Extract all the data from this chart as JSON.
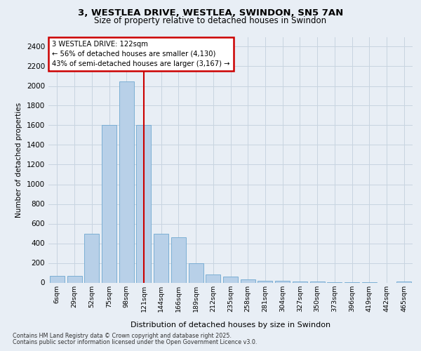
{
  "title1": "3, WESTLEA DRIVE, WESTLEA, SWINDON, SN5 7AN",
  "title2": "Size of property relative to detached houses in Swindon",
  "xlabel": "Distribution of detached houses by size in Swindon",
  "ylabel": "Number of detached properties",
  "categories": [
    "6sqm",
    "29sqm",
    "52sqm",
    "75sqm",
    "98sqm",
    "121sqm",
    "144sqm",
    "166sqm",
    "189sqm",
    "212sqm",
    "235sqm",
    "258sqm",
    "281sqm",
    "304sqm",
    "327sqm",
    "350sqm",
    "373sqm",
    "396sqm",
    "419sqm",
    "442sqm",
    "465sqm"
  ],
  "values": [
    70,
    70,
    500,
    1600,
    2050,
    1600,
    500,
    460,
    200,
    80,
    60,
    30,
    20,
    15,
    10,
    8,
    5,
    3,
    2,
    0,
    10
  ],
  "bar_color": "#b8d0e8",
  "bar_edge_color": "#6fa8d0",
  "reference_line_x": 5,
  "annotation_line1": "3 WESTLEA DRIVE: 122sqm",
  "annotation_line2": "← 56% of detached houses are smaller (4,130)",
  "annotation_line3": "43% of semi-detached houses are larger (3,167) →",
  "ylim": [
    0,
    2500
  ],
  "yticks": [
    0,
    200,
    400,
    600,
    800,
    1000,
    1200,
    1400,
    1600,
    1800,
    2000,
    2200,
    2400
  ],
  "background_color": "#e8eef5",
  "plot_bg_color": "#e8eef5",
  "footer1": "Contains HM Land Registry data © Crown copyright and database right 2025.",
  "footer2": "Contains public sector information licensed under the Open Government Licence v3.0.",
  "annotation_box_color": "#ffffff",
  "annotation_border_color": "#cc0000",
  "vline_color": "#cc0000",
  "grid_color": "#c8d4e0"
}
